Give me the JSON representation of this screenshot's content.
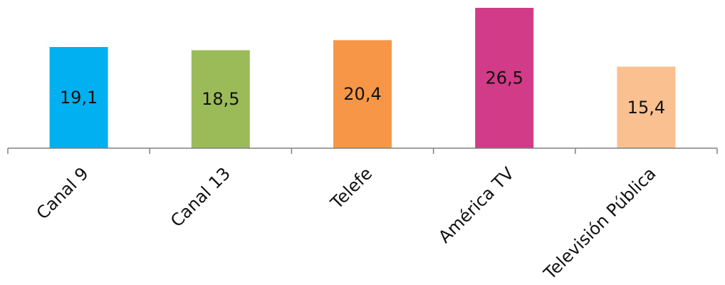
{
  "chart_data": {
    "type": "bar",
    "categories": [
      "Canal 9",
      "Canal 13",
      "Telefe",
      "América TV",
      "Televisión Pública"
    ],
    "values": [
      19.1,
      18.5,
      20.4,
      26.5,
      15.4
    ],
    "value_labels": [
      "19,1",
      "18,5",
      "20,4",
      "26,5",
      "15,4"
    ],
    "colors": [
      "#00b0f0",
      "#9bbb59",
      "#f79646",
      "#d13b87",
      "#fac090"
    ],
    "axis_color": "#808080",
    "ylim": [
      0,
      26.5
    ],
    "title": "",
    "xlabel": "",
    "ylabel": "",
    "grid": false,
    "legend": "none"
  }
}
